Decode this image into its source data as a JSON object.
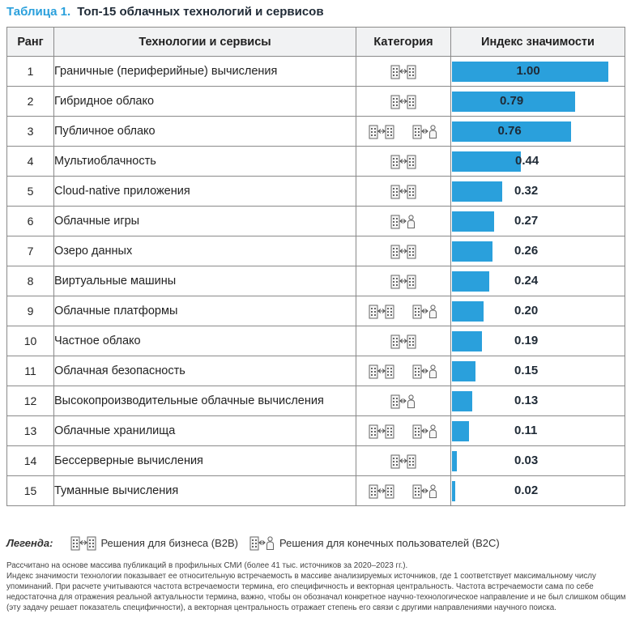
{
  "title": {
    "number": "Таблица 1.",
    "text": "Топ-15 облачных технологий и сервисов"
  },
  "table": {
    "headers": {
      "rank": "Ранг",
      "tech": "Технологии и сервисы",
      "category": "Категория",
      "index": "Индекс значимости"
    },
    "rows": [
      {
        "rank": "1",
        "name": "Граничные (периферийные) вычисления",
        "value": 1.0,
        "value_label": "1.00",
        "category": [
          "b2b"
        ]
      },
      {
        "rank": "2",
        "name": "Гибридное облако",
        "value": 0.79,
        "value_label": "0.79",
        "category": [
          "b2b"
        ]
      },
      {
        "rank": "3",
        "name": "Публичное облако",
        "value": 0.76,
        "value_label": "0.76",
        "category": [
          "b2b",
          "b2c"
        ]
      },
      {
        "rank": "4",
        "name": "Мультиоблачность",
        "value": 0.44,
        "value_label": "0.44",
        "category": [
          "b2b"
        ]
      },
      {
        "rank": "5",
        "name": "Cloud-native приложения",
        "value": 0.32,
        "value_label": "0.32",
        "category": [
          "b2b"
        ]
      },
      {
        "rank": "6",
        "name": "Облачные игры",
        "value": 0.27,
        "value_label": "0.27",
        "category": [
          "b2c"
        ]
      },
      {
        "rank": "7",
        "name": "Озеро данных",
        "value": 0.26,
        "value_label": "0.26",
        "category": [
          "b2b"
        ]
      },
      {
        "rank": "8",
        "name": "Виртуальные машины",
        "value": 0.24,
        "value_label": "0.24",
        "category": [
          "b2b"
        ]
      },
      {
        "rank": "9",
        "name": "Облачные платформы",
        "value": 0.2,
        "value_label": "0.20",
        "category": [
          "b2b",
          "b2c"
        ]
      },
      {
        "rank": "10",
        "name": "Частное облако",
        "value": 0.19,
        "value_label": "0.19",
        "category": [
          "b2b"
        ]
      },
      {
        "rank": "11",
        "name": "Облачная безопасность",
        "value": 0.15,
        "value_label": "0.15",
        "category": [
          "b2b",
          "b2c"
        ]
      },
      {
        "rank": "12",
        "name": "Высокопроизводительные облачные вычисления",
        "value": 0.13,
        "value_label": "0.13",
        "category": [
          "b2c"
        ]
      },
      {
        "rank": "13",
        "name": "Облачные хранилища",
        "value": 0.11,
        "value_label": "0.11",
        "category": [
          "b2b",
          "b2c"
        ]
      },
      {
        "rank": "14",
        "name": "Бессерверные вычисления",
        "value": 0.03,
        "value_label": "0.03",
        "category": [
          "b2b"
        ]
      },
      {
        "rank": "15",
        "name": "Туманные вычисления",
        "value": 0.02,
        "value_label": "0.02",
        "category": [
          "b2b",
          "b2c"
        ]
      }
    ]
  },
  "legend": {
    "title": "Легенда:",
    "b2b": "Решения для бизнеса (B2B)",
    "b2c": "Решения для конечных пользователей (B2C)"
  },
  "notes": [
    "Рассчитано на основе массива публикаций в профильных СМИ (более 41 тыс. источников за 2020–2023 гг.).",
    "Индекс значимости технологии показывает ее относительную встречаемость в массиве анализируемых источников, где 1 соответствует максимальному числу упоминаний. При расчете учитываются частота встречаемости термина, его специфичность и векторная центральность. Частота встречаемости сама по себе недостаточна для отражения реальной актуальности термина, важно, чтобы он обозначал конкретное научно-технологическое направление и не был слишком общим (эту задачу решает показатель специфичности), а векторная центральность отражает степень его связи с другими направлениями научного поиска."
  ],
  "colors": {
    "accent": "#2aa0dc",
    "header_bg": "#f1f2f3",
    "border": "#8a8a8a"
  },
  "icons": {
    "b2b": "business-buildings-icon",
    "b2c": "consumer-building-person-icon"
  }
}
